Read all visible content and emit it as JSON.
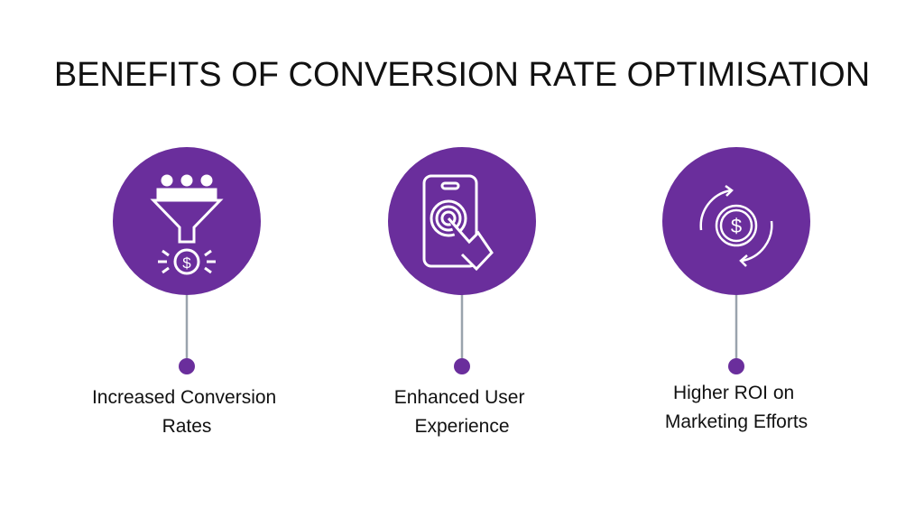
{
  "title": "BENEFITS OF CONVERSION RATE OPTIMISATION",
  "items": [
    {
      "lines": [
        "Increased Conversion",
        "Rates"
      ]
    },
    {
      "lines": [
        "Enhanced User",
        "Experience"
      ]
    },
    {
      "lines": [
        "Higher ROI on",
        "Marketing Efforts"
      ]
    }
  ]
}
